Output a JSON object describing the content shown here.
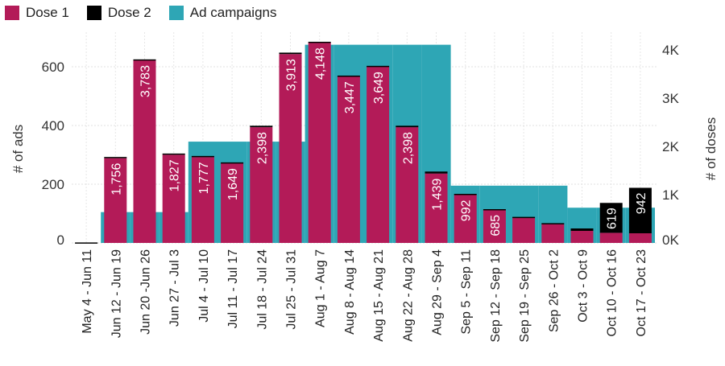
{
  "chart_data": {
    "type": "bar",
    "categories": [
      "May 4 - Jun 11",
      "Jun 12 - Jun 19",
      "Jun 20 -Jun 26",
      "Jun 27 - Jul 3",
      "Jul 4 - Jul 10",
      "Jul 11 - Jul 17",
      "Jul 18 - Jul 24",
      "Jul 25 - Jul 31",
      "Aug 1 - Aug 7",
      "Aug 8 - Aug 14",
      "Aug 15 - Aug 21",
      "Aug 22 - Aug 28",
      "Aug 29 - Sep 4",
      "Sep 5 - Sep 11",
      "Sep 12 - Sep 18",
      "Sep 19 - Sep 25",
      "Sep 26 - Oct 2",
      "Oct 3 - Oct 9",
      "Oct 10 - Oct 16",
      "Oct 17 - Oct 23"
    ],
    "series": [
      {
        "name": "Dose 1",
        "axis": "right",
        "color": "#b31b58",
        "values": [
          0,
          1756,
          3783,
          1827,
          1777,
          1649,
          2398,
          3913,
          4148,
          3447,
          3649,
          2398,
          1439,
          992,
          685,
          530,
          400,
          250,
          210,
          200
        ]
      },
      {
        "name": "Dose 2",
        "axis": "right",
        "color": "#000000",
        "values": [
          10,
          25,
          20,
          25,
          25,
          20,
          30,
          30,
          20,
          20,
          20,
          30,
          40,
          25,
          15,
          10,
          10,
          50,
          619,
          942
        ]
      },
      {
        "name": "Ad campaigns",
        "axis": "left",
        "color": "#2ea6b5",
        "values": [
          0,
          105,
          105,
          105,
          345,
          345,
          345,
          345,
          675,
          675,
          675,
          675,
          675,
          195,
          195,
          195,
          195,
          120,
          120,
          120
        ]
      }
    ],
    "data_labels": [
      "",
      "1,756",
      "3,783",
      "1,827",
      "1,777",
      "1,649",
      "2,398",
      "3,913",
      "4,148",
      "3,447",
      "3,649",
      "2,398",
      "1,439",
      "992",
      "685",
      "",
      "",
      "",
      "619",
      "942"
    ],
    "ylabel_left": "# of ads",
    "ylabel_right": "# of doses",
    "yticks_left": [
      "0",
      "200",
      "400",
      "600"
    ],
    "yticks_right": [
      "0K",
      "1K",
      "2K",
      "3K",
      "4K"
    ],
    "ylim_left": [
      0,
      700
    ],
    "ylim_right": [
      0,
      4200
    ],
    "grid": true,
    "legend": "top-left"
  }
}
